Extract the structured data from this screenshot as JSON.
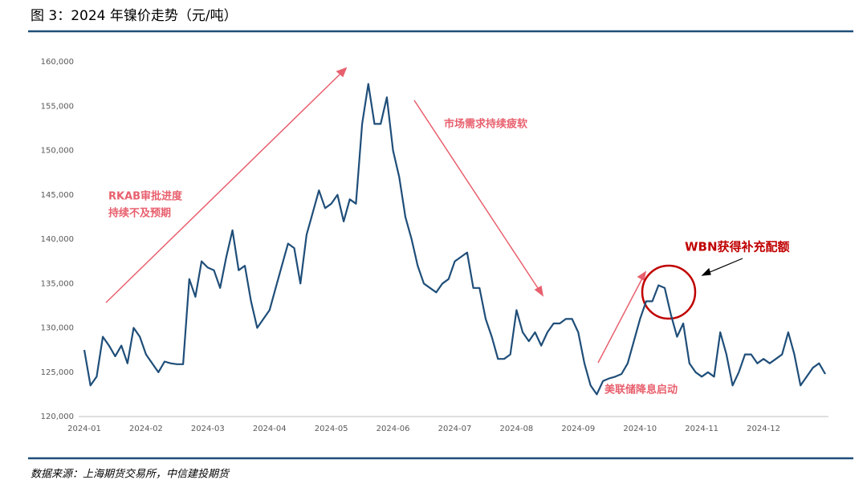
{
  "title": "图 3：2024 年镍价走势（元/吨）",
  "source": "数据来源：上海期货交易所，中信建投期货",
  "chart_data": {
    "type": "line",
    "categories": [
      "2024-01",
      null,
      null,
      null,
      null,
      null,
      null,
      null,
      null,
      null,
      "2024-02",
      null,
      null,
      null,
      null,
      null,
      null,
      null,
      null,
      null,
      "2024-03",
      null,
      null,
      null,
      null,
      null,
      null,
      null,
      null,
      null,
      "2024-04",
      null,
      null,
      null,
      null,
      null,
      null,
      null,
      null,
      null,
      "2024-05",
      null,
      null,
      null,
      null,
      null,
      null,
      null,
      null,
      null,
      "2024-06",
      null,
      null,
      null,
      null,
      null,
      null,
      null,
      null,
      null,
      "2024-07",
      null,
      null,
      null,
      null,
      null,
      null,
      null,
      null,
      null,
      "2024-08",
      null,
      null,
      null,
      null,
      null,
      null,
      null,
      null,
      null,
      "2024-09",
      null,
      null,
      null,
      null,
      null,
      null,
      null,
      null,
      null,
      "2024-10",
      null,
      null,
      null,
      null,
      null,
      null,
      null,
      null,
      null,
      "2024-11",
      null,
      null,
      null,
      null,
      null,
      null,
      null,
      null,
      null,
      "2024-12",
      null,
      null,
      null,
      null,
      null,
      null,
      null,
      null,
      null,
      null
    ],
    "values": [
      127500,
      123500,
      124500,
      129000,
      128000,
      126800,
      128000,
      126000,
      130000,
      129000,
      127000,
      126000,
      125000,
      126200,
      126000,
      125900,
      125900,
      135500,
      133500,
      137500,
      136800,
      136500,
      134500,
      138000,
      141000,
      136500,
      137000,
      133000,
      130000,
      131000,
      132000,
      134500,
      137000,
      139500,
      139000,
      135000,
      140500,
      143000,
      145500,
      143500,
      144000,
      145000,
      142000,
      144500,
      144000,
      153000,
      157500,
      153000,
      153000,
      156000,
      150000,
      147000,
      142500,
      140000,
      137000,
      135000,
      134500,
      134000,
      135000,
      135500,
      137500,
      138000,
      138500,
      134500,
      134500,
      131000,
      129000,
      126500,
      126500,
      127000,
      132000,
      129500,
      128500,
      129500,
      128000,
      129500,
      130500,
      130500,
      131000,
      131000,
      129500,
      126000,
      123500,
      122500,
      124000,
      124300,
      124500,
      124800,
      126000,
      128500,
      131000,
      133000,
      133000,
      134800,
      134500,
      131500,
      129000,
      130500,
      126000,
      125000,
      124500,
      125000,
      124500,
      129500,
      127000,
      123500,
      125000,
      127000,
      127000,
      126000,
      126500,
      126000,
      126500,
      127000,
      129500,
      127000,
      123500,
      124500,
      125500,
      126000,
      124800
    ],
    "color": "#1f4e79",
    "ylim": [
      120000,
      160000
    ],
    "yticks": [
      {
        "value": 120000,
        "label": "120,000"
      },
      {
        "value": 125000,
        "label": "125,000"
      },
      {
        "value": 130000,
        "label": "130,000"
      },
      {
        "value": 135000,
        "label": "135,000"
      },
      {
        "value": 140000,
        "label": "140,000"
      },
      {
        "value": 145000,
        "label": "145,000"
      },
      {
        "value": 150000,
        "label": "150,000"
      },
      {
        "value": 155000,
        "label": "155,000"
      },
      {
        "value": 160000,
        "label": "160,000"
      }
    ],
    "annotations": [
      [
        "RKAB审批进度",
        "持续不及预期"
      ],
      [
        "市场需求持续疲软"
      ],
      [
        "美联储降息启动"
      ],
      [
        "WBN获得补充配额"
      ]
    ]
  }
}
